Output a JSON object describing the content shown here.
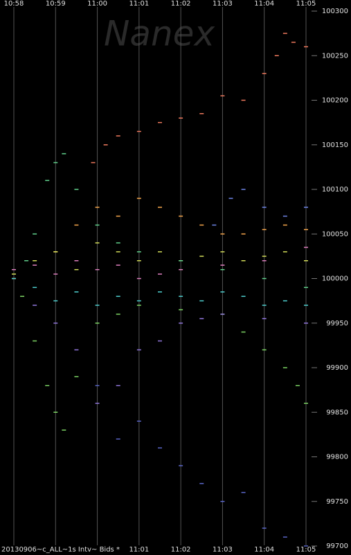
{
  "chart_data": {
    "type": "scatter",
    "watermark": "Nanex",
    "footer": "20130906~c_ALL~1s Intv~ Bids *",
    "xlim": [
      658,
      665
    ],
    "xticks": [
      {
        "value": 658,
        "label": "10:58"
      },
      {
        "value": 659,
        "label": "10:59"
      },
      {
        "value": 660,
        "label": "11:00"
      },
      {
        "value": 661,
        "label": "11:01"
      },
      {
        "value": 662,
        "label": "11:02"
      },
      {
        "value": 663,
        "label": "11:03"
      },
      {
        "value": 664,
        "label": "11:04"
      },
      {
        "value": 665,
        "label": "11:05"
      }
    ],
    "ylim": [
      99700,
      100300
    ],
    "yticks": [
      99700,
      99750,
      99800,
      99850,
      99900,
      99950,
      100000,
      100050,
      100100,
      100150,
      100200,
      100250,
      100300
    ],
    "series": [
      {
        "color": "#f07a5e",
        "x": [
          659.9,
          660.2,
          660.5,
          661,
          661.5,
          662,
          662.5,
          663,
          663.5,
          664,
          664.3,
          664.5,
          664.7,
          665
        ],
        "values": [
          100130,
          100150,
          100160,
          100165,
          100175,
          100180,
          100185,
          100205,
          100200,
          100230,
          100250,
          100275,
          100265,
          100260
        ]
      },
      {
        "color": "#f6a64c",
        "x": [
          658,
          659,
          659.5,
          660,
          660.5,
          661,
          661.5,
          662,
          662.5,
          663,
          663.5,
          664,
          664.5,
          665
        ],
        "values": [
          100000,
          100030,
          100060,
          100080,
          100070,
          100090,
          100080,
          100070,
          100060,
          100050,
          100050,
          100055,
          100060,
          100055
        ]
      },
      {
        "color": "#d6e05a",
        "x": [
          658,
          658.5,
          659,
          659.5,
          660,
          660.5,
          661,
          661.5,
          662,
          662.5,
          663,
          663.5,
          664,
          664.5,
          665
        ],
        "values": [
          100005,
          100020,
          100030,
          100010,
          100040,
          100030,
          100020,
          100030,
          100020,
          100025,
          100030,
          100020,
          100025,
          100030,
          100020
        ]
      },
      {
        "color": "#7fd866",
        "x": [
          658.2,
          658.5,
          658.8,
          659,
          659.2,
          659.5,
          660,
          660.5,
          661,
          662,
          663,
          663.5,
          664,
          664.5,
          664.8,
          665
        ],
        "values": [
          99980,
          99930,
          99880,
          99850,
          99830,
          99890,
          99950,
          99960,
          99970,
          99965,
          99960,
          99940,
          99920,
          99900,
          99880,
          99860
        ]
      },
      {
        "color": "#62d48e",
        "x": [
          658.3,
          658.5,
          658.8,
          659,
          659.2,
          659.5,
          660,
          660.5,
          661,
          662,
          663,
          664,
          665
        ],
        "values": [
          100020,
          100050,
          100110,
          100130,
          100140,
          100100,
          100060,
          100040,
          100030,
          100020,
          100010,
          100000,
          99990
        ]
      },
      {
        "color": "#9378e0",
        "x": [
          658.5,
          659,
          659.5,
          660,
          660.5,
          661,
          661.5,
          662,
          662.5,
          663,
          664,
          665
        ],
        "values": [
          99970,
          99950,
          99920,
          99860,
          99880,
          99920,
          99930,
          99950,
          99955,
          99960,
          99955,
          99950
        ]
      },
      {
        "color": "#5a66c8",
        "x": [
          660,
          660.5,
          661,
          661.5,
          662,
          662.5,
          663,
          663.5,
          664,
          664.5,
          665
        ],
        "values": [
          99880,
          99820,
          99840,
          99810,
          99790,
          99770,
          99750,
          99760,
          99720,
          99710,
          99700
        ]
      },
      {
        "color": "#6f86e8",
        "x": [
          662.8,
          663.2,
          663.5,
          664,
          664.5,
          665
        ],
        "values": [
          100060,
          100090,
          100100,
          100080,
          100070,
          100080
        ]
      },
      {
        "color": "#4fd0d0",
        "x": [
          658,
          658.5,
          659,
          659.5,
          660,
          660.5,
          661,
          661.5,
          662,
          662.5,
          663,
          663.5,
          664,
          664.5,
          665
        ],
        "values": [
          100000,
          99990,
          99975,
          99985,
          99970,
          99980,
          99975,
          99985,
          99980,
          99975,
          99985,
          99980,
          99970,
          99975,
          99970
        ]
      },
      {
        "color": "#e080c0",
        "x": [
          658,
          658.5,
          659,
          659.5,
          660,
          660.5,
          661,
          661.5,
          662,
          663,
          664,
          665
        ],
        "values": [
          100010,
          100015,
          100005,
          100020,
          100010,
          100015,
          100000,
          100005,
          100010,
          100015,
          100020,
          100035
        ]
      }
    ]
  }
}
